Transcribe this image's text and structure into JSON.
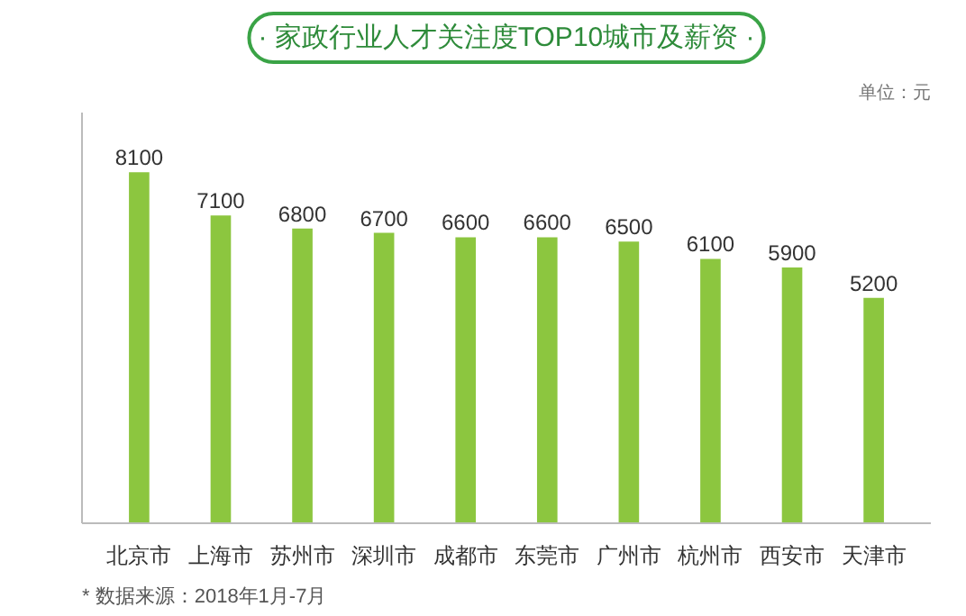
{
  "chart_data": {
    "type": "bar",
    "title": "· 家政行业人才关注度TOP10城市及薪资 ·",
    "annotations": [
      "单位：元",
      "* 数据来源：2018年1月-7月"
    ],
    "categories": [
      "北京市",
      "上海市",
      "苏州市",
      "深圳市",
      "成都市",
      "东莞市",
      "广州市",
      "杭州市",
      "西安市",
      "天津市"
    ],
    "values": [
      8100,
      7100,
      6800,
      6700,
      6600,
      6600,
      6500,
      6100,
      5900,
      5200
    ],
    "color": "#8cc63f",
    "data_labels": true,
    "tick_labels": "x"
  }
}
